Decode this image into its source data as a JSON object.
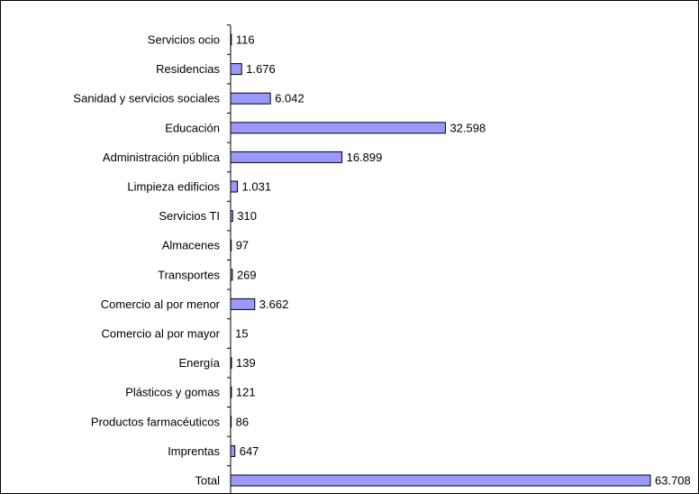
{
  "chart_data": {
    "type": "bar",
    "orientation": "horizontal",
    "title": "",
    "xlabel": "",
    "ylabel": "",
    "categories": [
      "Servicios ocio",
      "Residencias",
      "Sanidad y servicios sociales",
      "Educación",
      "Administración pública",
      "Limpieza edificios",
      "Servicios TI",
      "Almacenes",
      "Transportes",
      "Comercio al por menor",
      "Comercio al por mayor",
      "Energía",
      "Plásticos y gomas",
      "Productos farmacéuticos",
      "Imprentas",
      "Total"
    ],
    "values": [
      116,
      1676,
      6042,
      32598,
      16899,
      1031,
      310,
      97,
      269,
      3662,
      15,
      139,
      121,
      86,
      647,
      63708
    ],
    "value_labels": [
      "116",
      "1.676",
      "6.042",
      "32.598",
      "16.899",
      "1.031",
      "310",
      "97",
      "269",
      "3.662",
      "15",
      "139",
      "121",
      "86",
      "647",
      "63.708"
    ],
    "xlim": [
      0,
      63708
    ],
    "grid": false,
    "legend": "none",
    "colors": {
      "bar_fill": "#9999ff",
      "bar_stroke": "#000000",
      "axis": "#000000",
      "background": "#ffffff"
    }
  }
}
